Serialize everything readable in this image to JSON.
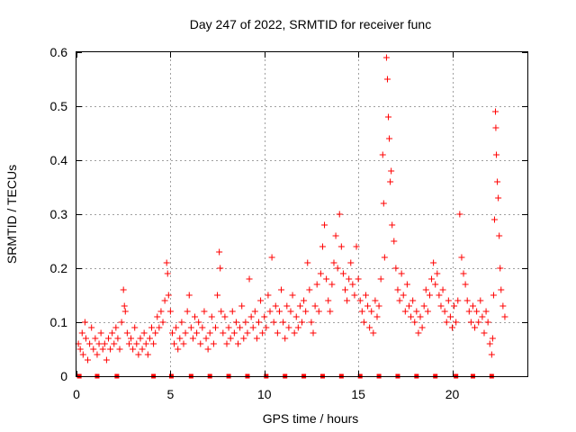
{
  "chart_data": {
    "type": "scatter",
    "title": "Day 247 of 2022, SRMTID for receiver func",
    "xlabel": "GPS time / hours",
    "ylabel": "SRMTID / TECUs",
    "xlim": [
      0,
      24
    ],
    "ylim": [
      0,
      0.6
    ],
    "x_ticks": [
      0,
      5,
      10,
      15,
      20
    ],
    "x_tick_labels": [
      "0",
      "5",
      "10",
      "15",
      "20"
    ],
    "y_ticks": [
      0,
      0.1,
      0.2,
      0.3,
      0.4,
      0.5,
      0.6
    ],
    "y_tick_labels": [
      "0",
      "0.1",
      "0.2",
      "0.3",
      "0.4",
      "0.5",
      "0.6"
    ],
    "grid": true,
    "marker": "+",
    "color": "#ff0000",
    "zero_markers_x": [
      0.15,
      1.1,
      2.15,
      4.1,
      5.05,
      6.1,
      7.1,
      8.1,
      9.1,
      10.1,
      11.1,
      12.1,
      13.1,
      14.1,
      15.1,
      16.1,
      17.1,
      18.1,
      19.1,
      20.2,
      21.1,
      22.1
    ],
    "series": [
      {
        "name": "SRMTID",
        "points": [
          [
            0.1,
            0.06
          ],
          [
            0.2,
            0.05
          ],
          [
            0.3,
            0.08
          ],
          [
            0.35,
            0.04
          ],
          [
            0.45,
            0.1
          ],
          [
            0.5,
            0.07
          ],
          [
            0.6,
            0.03
          ],
          [
            0.7,
            0.06
          ],
          [
            0.8,
            0.09
          ],
          [
            0.9,
            0.05
          ],
          [
            1.0,
            0.07
          ],
          [
            1.1,
            0.04
          ],
          [
            1.2,
            0.06
          ],
          [
            1.3,
            0.08
          ],
          [
            1.4,
            0.05
          ],
          [
            1.5,
            0.06
          ],
          [
            1.6,
            0.03
          ],
          [
            1.7,
            0.07
          ],
          [
            1.8,
            0.05
          ],
          [
            1.9,
            0.08
          ],
          [
            2.0,
            0.06
          ],
          [
            2.1,
            0.09
          ],
          [
            2.2,
            0.07
          ],
          [
            2.3,
            0.05
          ],
          [
            2.4,
            0.1
          ],
          [
            2.5,
            0.16
          ],
          [
            2.55,
            0.13
          ],
          [
            2.6,
            0.12
          ],
          [
            2.7,
            0.08
          ],
          [
            2.8,
            0.06
          ],
          [
            2.9,
            0.07
          ],
          [
            3.0,
            0.05
          ],
          [
            3.1,
            0.09
          ],
          [
            3.2,
            0.06
          ],
          [
            3.3,
            0.04
          ],
          [
            3.4,
            0.07
          ],
          [
            3.5,
            0.05
          ],
          [
            3.6,
            0.08
          ],
          [
            3.7,
            0.06
          ],
          [
            3.8,
            0.04
          ],
          [
            3.9,
            0.07
          ],
          [
            4.0,
            0.09
          ],
          [
            4.1,
            0.06
          ],
          [
            4.2,
            0.08
          ],
          [
            4.3,
            0.11
          ],
          [
            4.4,
            0.09
          ],
          [
            4.5,
            0.12
          ],
          [
            4.6,
            0.1
          ],
          [
            4.7,
            0.14
          ],
          [
            4.8,
            0.21
          ],
          [
            4.85,
            0.19
          ],
          [
            4.9,
            0.15
          ],
          [
            5.0,
            0.12
          ],
          [
            5.1,
            0.08
          ],
          [
            5.2,
            0.06
          ],
          [
            5.3,
            0.09
          ],
          [
            5.4,
            0.05
          ],
          [
            5.5,
            0.07
          ],
          [
            5.6,
            0.1
          ],
          [
            5.7,
            0.06
          ],
          [
            5.8,
            0.08
          ],
          [
            5.9,
            0.12
          ],
          [
            6.0,
            0.15
          ],
          [
            6.1,
            0.09
          ],
          [
            6.2,
            0.07
          ],
          [
            6.3,
            0.11
          ],
          [
            6.4,
            0.08
          ],
          [
            6.5,
            0.1
          ],
          [
            6.6,
            0.06
          ],
          [
            6.7,
            0.09
          ],
          [
            6.8,
            0.12
          ],
          [
            6.9,
            0.07
          ],
          [
            7.0,
            0.05
          ],
          [
            7.1,
            0.08
          ],
          [
            7.2,
            0.11
          ],
          [
            7.3,
            0.06
          ],
          [
            7.4,
            0.09
          ],
          [
            7.5,
            0.15
          ],
          [
            7.6,
            0.23
          ],
          [
            7.65,
            0.2
          ],
          [
            7.7,
            0.12
          ],
          [
            7.8,
            0.08
          ],
          [
            7.9,
            0.11
          ],
          [
            8.0,
            0.06
          ],
          [
            8.1,
            0.09
          ],
          [
            8.2,
            0.07
          ],
          [
            8.3,
            0.12
          ],
          [
            8.4,
            0.08
          ],
          [
            8.5,
            0.1
          ],
          [
            8.6,
            0.06
          ],
          [
            8.7,
            0.09
          ],
          [
            8.8,
            0.13
          ],
          [
            8.9,
            0.07
          ],
          [
            9.0,
            0.1
          ],
          [
            9.1,
            0.08
          ],
          [
            9.2,
            0.18
          ],
          [
            9.3,
            0.11
          ],
          [
            9.4,
            0.09
          ],
          [
            9.5,
            0.12
          ],
          [
            9.6,
            0.07
          ],
          [
            9.7,
            0.1
          ],
          [
            9.8,
            0.14
          ],
          [
            9.9,
            0.08
          ],
          [
            10.0,
            0.11
          ],
          [
            10.1,
            0.09
          ],
          [
            10.2,
            0.15
          ],
          [
            10.3,
            0.12
          ],
          [
            10.4,
            0.22
          ],
          [
            10.5,
            0.1
          ],
          [
            10.6,
            0.13
          ],
          [
            10.7,
            0.08
          ],
          [
            10.8,
            0.12
          ],
          [
            10.9,
            0.16
          ],
          [
            11.0,
            0.1
          ],
          [
            11.1,
            0.07
          ],
          [
            11.2,
            0.13
          ],
          [
            11.3,
            0.09
          ],
          [
            11.4,
            0.12
          ],
          [
            11.5,
            0.15
          ],
          [
            11.6,
            0.08
          ],
          [
            11.7,
            0.11
          ],
          [
            11.8,
            0.09
          ],
          [
            11.9,
            0.13
          ],
          [
            12.0,
            0.1
          ],
          [
            12.1,
            0.14
          ],
          [
            12.2,
            0.12
          ],
          [
            12.3,
            0.21
          ],
          [
            12.4,
            0.16
          ],
          [
            12.5,
            0.1
          ],
          [
            12.6,
            0.08
          ],
          [
            12.7,
            0.13
          ],
          [
            12.8,
            0.17
          ],
          [
            12.9,
            0.12
          ],
          [
            13.0,
            0.19
          ],
          [
            13.1,
            0.24
          ],
          [
            13.2,
            0.28
          ],
          [
            13.3,
            0.18
          ],
          [
            13.4,
            0.14
          ],
          [
            13.5,
            0.12
          ],
          [
            13.6,
            0.17
          ],
          [
            13.7,
            0.21
          ],
          [
            13.8,
            0.26
          ],
          [
            13.9,
            0.2
          ],
          [
            14.0,
            0.3
          ],
          [
            14.1,
            0.24
          ],
          [
            14.2,
            0.19
          ],
          [
            14.3,
            0.16
          ],
          [
            14.4,
            0.14
          ],
          [
            14.5,
            0.18
          ],
          [
            14.6,
            0.21
          ],
          [
            14.7,
            0.17
          ],
          [
            14.8,
            0.15
          ],
          [
            14.9,
            0.24
          ],
          [
            15.0,
            0.18
          ],
          [
            15.1,
            0.14
          ],
          [
            15.2,
            0.12
          ],
          [
            15.3,
            0.1
          ],
          [
            15.4,
            0.15
          ],
          [
            15.5,
            0.13
          ],
          [
            15.6,
            0.09
          ],
          [
            15.7,
            0.12
          ],
          [
            15.8,
            0.08
          ],
          [
            15.9,
            0.14
          ],
          [
            16.0,
            0.11
          ],
          [
            16.1,
            0.13
          ],
          [
            16.2,
            0.18
          ],
          [
            16.3,
            0.41
          ],
          [
            16.35,
            0.32
          ],
          [
            16.4,
            0.22
          ],
          [
            16.5,
            0.59
          ],
          [
            16.55,
            0.55
          ],
          [
            16.6,
            0.48
          ],
          [
            16.65,
            0.44
          ],
          [
            16.7,
            0.36
          ],
          [
            16.75,
            0.38
          ],
          [
            16.8,
            0.28
          ],
          [
            16.9,
            0.25
          ],
          [
            17.0,
            0.2
          ],
          [
            17.1,
            0.16
          ],
          [
            17.2,
            0.14
          ],
          [
            17.3,
            0.19
          ],
          [
            17.4,
            0.15
          ],
          [
            17.5,
            0.12
          ],
          [
            17.6,
            0.17
          ],
          [
            17.7,
            0.13
          ],
          [
            17.8,
            0.11
          ],
          [
            17.9,
            0.14
          ],
          [
            18.0,
            0.1
          ],
          [
            18.1,
            0.12
          ],
          [
            18.2,
            0.08
          ],
          [
            18.3,
            0.11
          ],
          [
            18.4,
            0.09
          ],
          [
            18.5,
            0.13
          ],
          [
            18.6,
            0.16
          ],
          [
            18.7,
            0.12
          ],
          [
            18.8,
            0.15
          ],
          [
            18.9,
            0.18
          ],
          [
            19.0,
            0.21
          ],
          [
            19.1,
            0.17
          ],
          [
            19.2,
            0.19
          ],
          [
            19.3,
            0.15
          ],
          [
            19.4,
            0.13
          ],
          [
            19.5,
            0.16
          ],
          [
            19.6,
            0.12
          ],
          [
            19.7,
            0.1
          ],
          [
            19.8,
            0.14
          ],
          [
            19.9,
            0.11
          ],
          [
            20.0,
            0.09
          ],
          [
            20.1,
            0.13
          ],
          [
            20.2,
            0.1
          ],
          [
            20.3,
            0.14
          ],
          [
            20.4,
            0.3
          ],
          [
            20.5,
            0.22
          ],
          [
            20.6,
            0.19
          ],
          [
            20.7,
            0.17
          ],
          [
            20.8,
            0.14
          ],
          [
            20.9,
            0.12
          ],
          [
            21.0,
            0.1
          ],
          [
            21.1,
            0.13
          ],
          [
            21.2,
            0.09
          ],
          [
            21.3,
            0.12
          ],
          [
            21.4,
            0.1
          ],
          [
            21.5,
            0.14
          ],
          [
            21.6,
            0.11
          ],
          [
            21.7,
            0.08
          ],
          [
            21.8,
            0.12
          ],
          [
            21.9,
            0.1
          ],
          [
            22.0,
            0.06
          ],
          [
            22.1,
            0.04
          ],
          [
            22.15,
            0.07
          ],
          [
            22.2,
            0.15
          ],
          [
            22.25,
            0.29
          ],
          [
            22.3,
            0.49
          ],
          [
            22.32,
            0.46
          ],
          [
            22.35,
            0.41
          ],
          [
            22.4,
            0.36
          ],
          [
            22.45,
            0.33
          ],
          [
            22.5,
            0.26
          ],
          [
            22.55,
            0.2
          ],
          [
            22.6,
            0.16
          ],
          [
            22.7,
            0.13
          ],
          [
            22.8,
            0.11
          ]
        ]
      }
    ]
  }
}
